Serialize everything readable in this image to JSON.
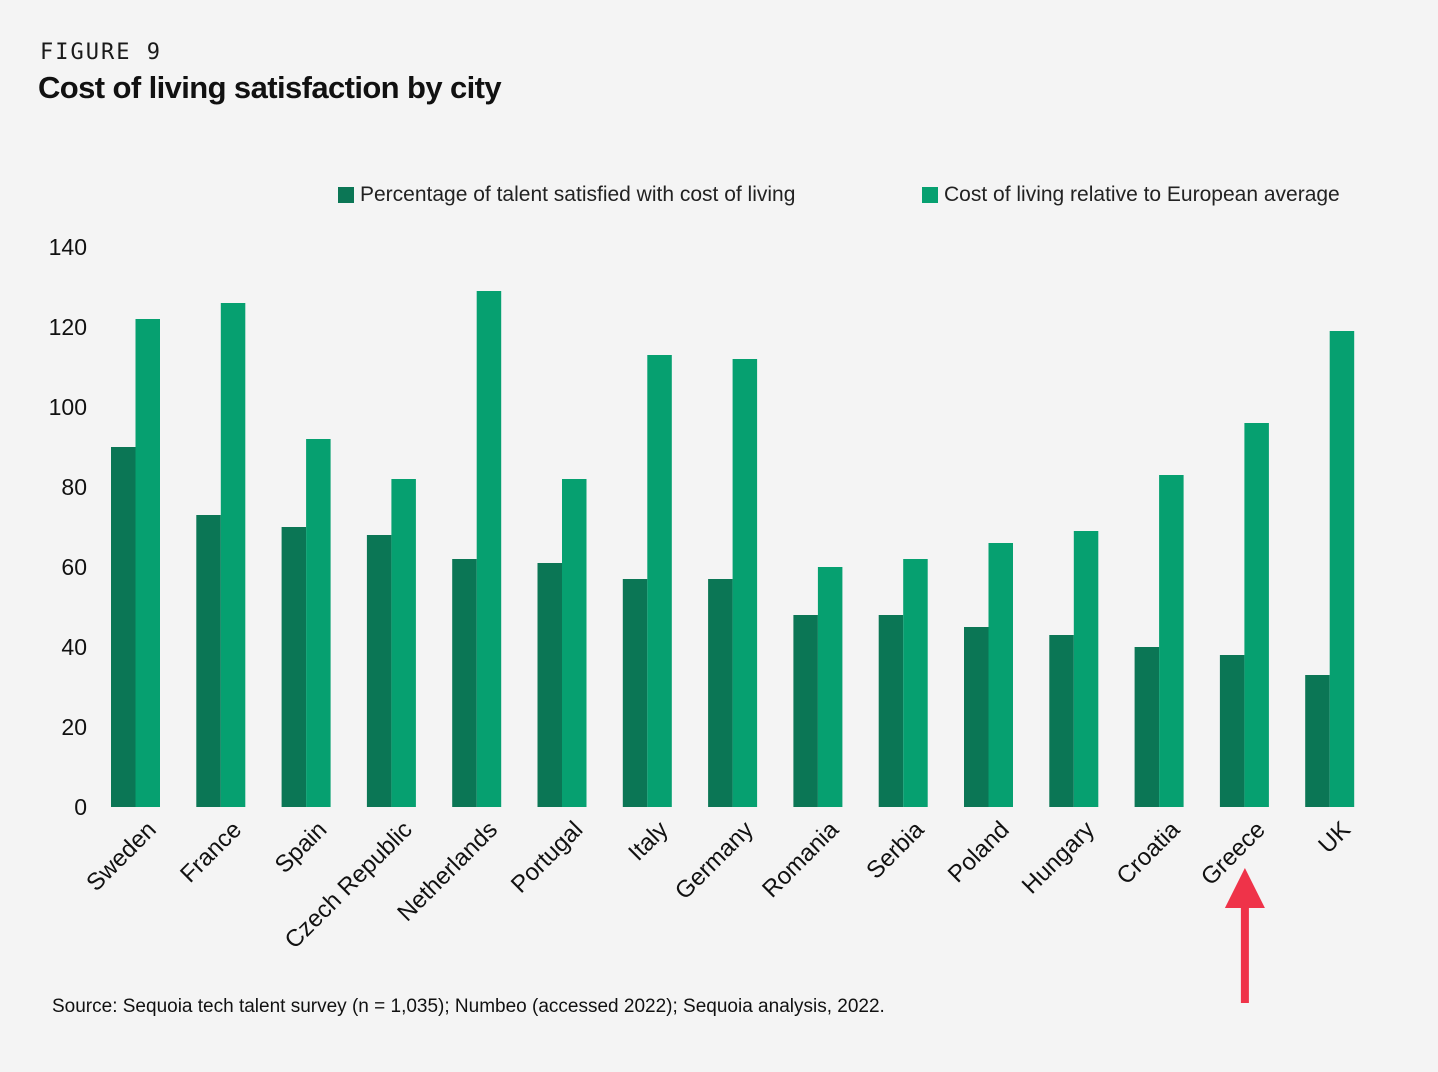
{
  "header": {
    "figure_label": "FIGURE 9",
    "title": "Cost of living satisfaction by city"
  },
  "legend": [
    {
      "label": "Percentage of talent satisfied with cost of living",
      "color": "#0b7655"
    },
    {
      "label": "Cost of living relative to European average",
      "color": "#06a070"
    }
  ],
  "source": "Source: Sequoia tech talent survey (n = 1,035); Numbeo (accessed 2022); Sequoia analysis, 2022.",
  "annotation": {
    "target": "Greece",
    "color": "#ef3349",
    "icon": "up-arrow-icon"
  },
  "chart_data": {
    "type": "bar",
    "title": "Cost of living satisfaction by city",
    "categories": [
      "Sweden",
      "France",
      "Spain",
      "Czech Republic",
      "Netherlands",
      "Portugal",
      "Italy",
      "Germany",
      "Romania",
      "Serbia",
      "Poland",
      "Hungary",
      "Croatia",
      "Greece",
      "UK"
    ],
    "series": [
      {
        "name": "Percentage of talent satisfied with cost of living",
        "color": "#0b7655",
        "values": [
          90,
          73,
          70,
          68,
          62,
          61,
          57,
          57,
          48,
          48,
          45,
          43,
          40,
          38,
          33
        ]
      },
      {
        "name": "Cost of living relative to European average",
        "color": "#06a070",
        "values": [
          122,
          126,
          92,
          82,
          129,
          82,
          113,
          112,
          60,
          62,
          66,
          69,
          83,
          96,
          119
        ]
      }
    ],
    "yticks": [
      "0",
      "20",
      "40",
      "60",
      "80",
      "100",
      "120",
      "140"
    ],
    "ylim": [
      0,
      140
    ],
    "grid": false,
    "legend_position": "top"
  }
}
